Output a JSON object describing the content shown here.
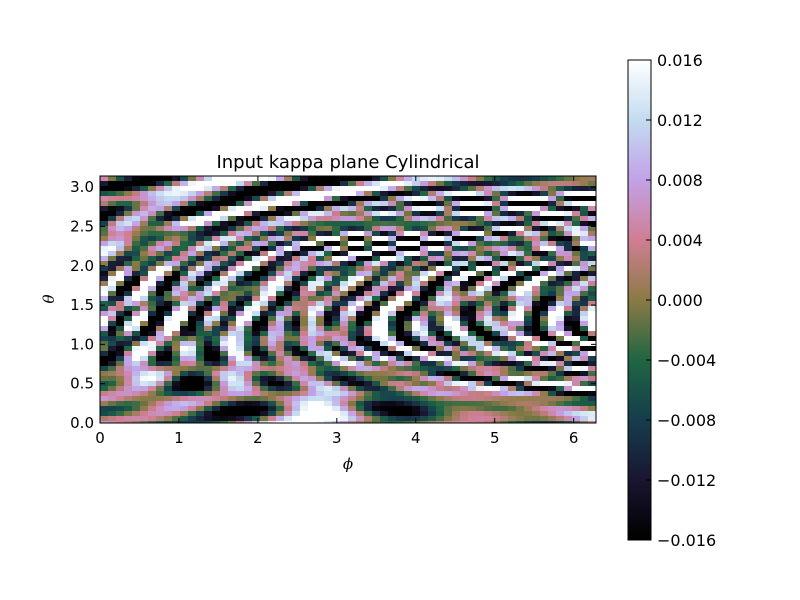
{
  "chart_data": {
    "type": "heatmap",
    "title": "Input kappa plane Cylindrical",
    "xlabel": "ϕ",
    "ylabel": "θ",
    "xlim": [
      0,
      6.283
    ],
    "ylim": [
      0,
      3.1416
    ],
    "x_ticks": [
      {
        "value": 0,
        "label": "0"
      },
      {
        "value": 1,
        "label": "1"
      },
      {
        "value": 2,
        "label": "2"
      },
      {
        "value": 3,
        "label": "3"
      },
      {
        "value": 4,
        "label": "4"
      },
      {
        "value": 5,
        "label": "5"
      },
      {
        "value": 6,
        "label": "6"
      }
    ],
    "y_ticks": [
      {
        "value": 0.0,
        "label": "0.0"
      },
      {
        "value": 0.5,
        "label": "0.5"
      },
      {
        "value": 1.0,
        "label": "1.0"
      },
      {
        "value": 1.5,
        "label": "1.5"
      },
      {
        "value": 2.0,
        "label": "2.0"
      },
      {
        "value": 2.5,
        "label": "2.5"
      },
      {
        "value": 3.0,
        "label": "3.0"
      }
    ],
    "colorbar": {
      "colormap": "cubehelix",
      "vmin": -0.016,
      "vmax": 0.016,
      "ticks": [
        {
          "value": -0.016,
          "label": "−0.016"
        },
        {
          "value": -0.012,
          "label": "−0.012"
        },
        {
          "value": -0.008,
          "label": "−0.008"
        },
        {
          "value": -0.004,
          "label": "−0.004"
        },
        {
          "value": 0.0,
          "label": "0.000"
        },
        {
          "value": 0.004,
          "label": "0.004"
        },
        {
          "value": 0.008,
          "label": "0.008"
        },
        {
          "value": 0.012,
          "label": "0.012"
        },
        {
          "value": 0.016,
          "label": "0.016"
        }
      ]
    },
    "grid": false
  }
}
